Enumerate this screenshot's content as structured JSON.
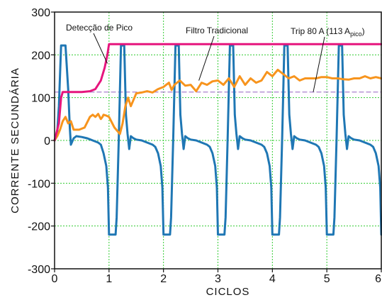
{
  "chart_data": {
    "type": "line",
    "xlabel": "CICLOS",
    "ylabel": "CORRENTE SECUNDÁRIA",
    "xlim": [
      0,
      6
    ],
    "ylim": [
      -300,
      300
    ],
    "xticks": [
      0,
      1,
      2,
      3,
      4,
      5,
      6
    ],
    "yticks": [
      -300,
      -200,
      -100,
      0,
      100,
      200,
      300
    ],
    "grid": true,
    "annotations": [
      {
        "text": "Detecção de Pico",
        "target_x": 0.97,
        "target_y": 180
      },
      {
        "text": "Filtro Tradicional",
        "target_x": 2.65,
        "target_y": 140
      },
      {
        "text": "Trip 80 A (113 A",
        "subscript": "pico",
        "suffix": ")",
        "target_x": 4.75,
        "target_y": 113
      }
    ],
    "colors": {
      "secondary_current": "#1f77b4",
      "peak_detection": "#e6157d",
      "traditional_filter": "#f7941d",
      "trip_threshold": "#a070c8",
      "grid": "#33cc33"
    },
    "series": [
      {
        "key": "secondary_current",
        "x": [
          0,
          0.05,
          0.08,
          0.12,
          0.2,
          0.25,
          0.28,
          0.3,
          0.35,
          0.4,
          0.5,
          0.6,
          0.7,
          0.8,
          0.85,
          0.9,
          0.95,
          0.98,
          1.0,
          1.03,
          1.06,
          1.12,
          1.14,
          1.18,
          1.22,
          1.28,
          1.31,
          1.34,
          1.37,
          1.4,
          1.45,
          1.5,
          1.6,
          1.7,
          1.8,
          1.85,
          1.9,
          1.95,
          1.98,
          2.0,
          2.03,
          2.06,
          2.12,
          2.14,
          2.18,
          2.22,
          2.28,
          2.31,
          2.34,
          2.37,
          2.4,
          2.45,
          2.5,
          2.6,
          2.7,
          2.8,
          2.85,
          2.9,
          2.95,
          2.98,
          3.0,
          3.03,
          3.06,
          3.12,
          3.14,
          3.18,
          3.22,
          3.28,
          3.31,
          3.34,
          3.37,
          3.4,
          3.45,
          3.5,
          3.6,
          3.7,
          3.8,
          3.85,
          3.9,
          3.95,
          3.98,
          4.0,
          4.03,
          4.06,
          4.12,
          4.14,
          4.18,
          4.22,
          4.28,
          4.31,
          4.34,
          4.37,
          4.4,
          4.45,
          4.5,
          4.6,
          4.7,
          4.8,
          4.85,
          4.9,
          4.95,
          4.98,
          5.0,
          5.03,
          5.06,
          5.12,
          5.14,
          5.18,
          5.22,
          5.28,
          5.31,
          5.34,
          5.37,
          5.4,
          5.45,
          5.5,
          5.6,
          5.7,
          5.8,
          5.85,
          5.9,
          5.95,
          5.98,
          6.0
        ],
        "y": [
          0,
          20,
          80,
          222,
          222,
          120,
          30,
          -10,
          5,
          10,
          8,
          5,
          0,
          -5,
          -10,
          -30,
          -60,
          -110,
          -220,
          -220,
          -220,
          -220,
          -180,
          10,
          222,
          222,
          60,
          15,
          -20,
          10,
          5,
          2,
          0,
          -5,
          -10,
          -15,
          -30,
          -60,
          -110,
          -220,
          -220,
          -220,
          -220,
          -180,
          10,
          222,
          222,
          60,
          15,
          -20,
          10,
          5,
          2,
          0,
          -5,
          -10,
          -15,
          -30,
          -60,
          -110,
          -220,
          -220,
          -220,
          -220,
          -180,
          10,
          222,
          222,
          60,
          15,
          -20,
          10,
          5,
          2,
          0,
          -5,
          -10,
          -15,
          -30,
          -60,
          -110,
          -220,
          -220,
          -220,
          -220,
          -180,
          10,
          222,
          222,
          60,
          15,
          -20,
          10,
          5,
          2,
          0,
          -5,
          -10,
          -15,
          -30,
          -60,
          -110,
          -220,
          -220,
          -220,
          -220,
          -180,
          10,
          222,
          222,
          60,
          15,
          -20,
          10,
          5,
          2,
          0,
          -5,
          -10,
          -15,
          -30,
          -60,
          -110,
          -220
        ]
      },
      {
        "key": "peak_detection",
        "x": [
          0,
          0.08,
          0.12,
          0.15,
          0.3,
          0.5,
          0.65,
          0.75,
          0.85,
          0.92,
          0.97,
          1.0,
          6.0
        ],
        "y": [
          0,
          40,
          100,
          113,
          113,
          113,
          115,
          120,
          140,
          170,
          200,
          225,
          225
        ]
      },
      {
        "key": "traditional_filter",
        "x": [
          0,
          0.05,
          0.1,
          0.15,
          0.2,
          0.25,
          0.3,
          0.35,
          0.45,
          0.55,
          0.65,
          0.7,
          0.75,
          0.8,
          0.85,
          0.88,
          0.9,
          0.95,
          1.0,
          1.1,
          1.2,
          1.25,
          1.3,
          1.35,
          1.4,
          1.5,
          1.6,
          1.7,
          1.8,
          1.9,
          2.0,
          2.1,
          2.15,
          2.2,
          2.3,
          2.4,
          2.5,
          2.6,
          2.7,
          2.8,
          2.9,
          3.0,
          3.1,
          3.2,
          3.3,
          3.4,
          3.5,
          3.6,
          3.7,
          3.8,
          3.9,
          4.0,
          4.1,
          4.2,
          4.3,
          4.4,
          4.5,
          4.6,
          4.7,
          4.8,
          4.9,
          5.0,
          5.1,
          5.2,
          5.3,
          5.4,
          5.5,
          5.6,
          5.7,
          5.8,
          5.9,
          6.0
        ],
        "y": [
          0,
          10,
          25,
          45,
          55,
          40,
          45,
          25,
          25,
          30,
          55,
          60,
          55,
          62,
          50,
          55,
          60,
          58,
          55,
          30,
          15,
          40,
          80,
          100,
          80,
          110,
          112,
          115,
          112,
          120,
          125,
          135,
          118,
          130,
          140,
          128,
          130,
          115,
          135,
          130,
          138,
          140,
          130,
          145,
          125,
          150,
          130,
          145,
          135,
          140,
          160,
          150,
          165,
          155,
          145,
          150,
          140,
          145,
          145,
          145,
          148,
          148,
          145,
          145,
          143,
          142,
          145,
          145,
          150,
          145,
          148,
          145
        ]
      },
      {
        "key": "trip_threshold",
        "x": [
          0,
          6
        ],
        "y": [
          113,
          113
        ],
        "dashed": true
      }
    ]
  }
}
